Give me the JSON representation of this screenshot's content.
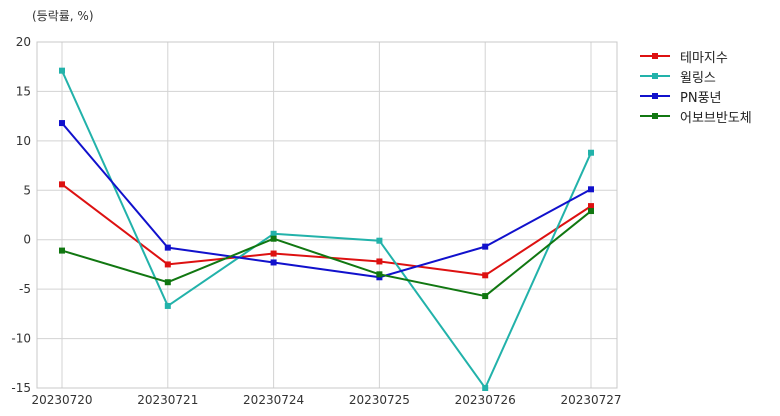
{
  "chart_data": {
    "type": "line",
    "title": "",
    "unit_label": "(등락률, %)",
    "xlabel": "",
    "ylabel": "",
    "categories": [
      "20230720",
      "20230721",
      "20230724",
      "20230725",
      "20230726",
      "20230727"
    ],
    "ylim": [
      -15,
      20
    ],
    "yticks": [
      -15,
      -10,
      -5,
      0,
      5,
      10,
      15,
      20
    ],
    "grid": true,
    "legend_position": "right",
    "series": [
      {
        "name": "테마지수",
        "color": "#dd1111",
        "values": [
          5.6,
          -2.5,
          -1.4,
          -2.2,
          -3.6,
          3.4
        ]
      },
      {
        "name": "윌링스",
        "color": "#22b2aa",
        "values": [
          17.1,
          -6.7,
          0.6,
          -0.1,
          -15.0,
          8.8
        ]
      },
      {
        "name": "PN풍년",
        "color": "#1111cc",
        "values": [
          11.8,
          -0.8,
          -2.3,
          -3.8,
          -0.7,
          5.1
        ]
      },
      {
        "name": "어보브반도체",
        "color": "#117711",
        "values": [
          -1.1,
          -4.3,
          0.1,
          -3.5,
          -5.7,
          2.9
        ]
      }
    ]
  }
}
